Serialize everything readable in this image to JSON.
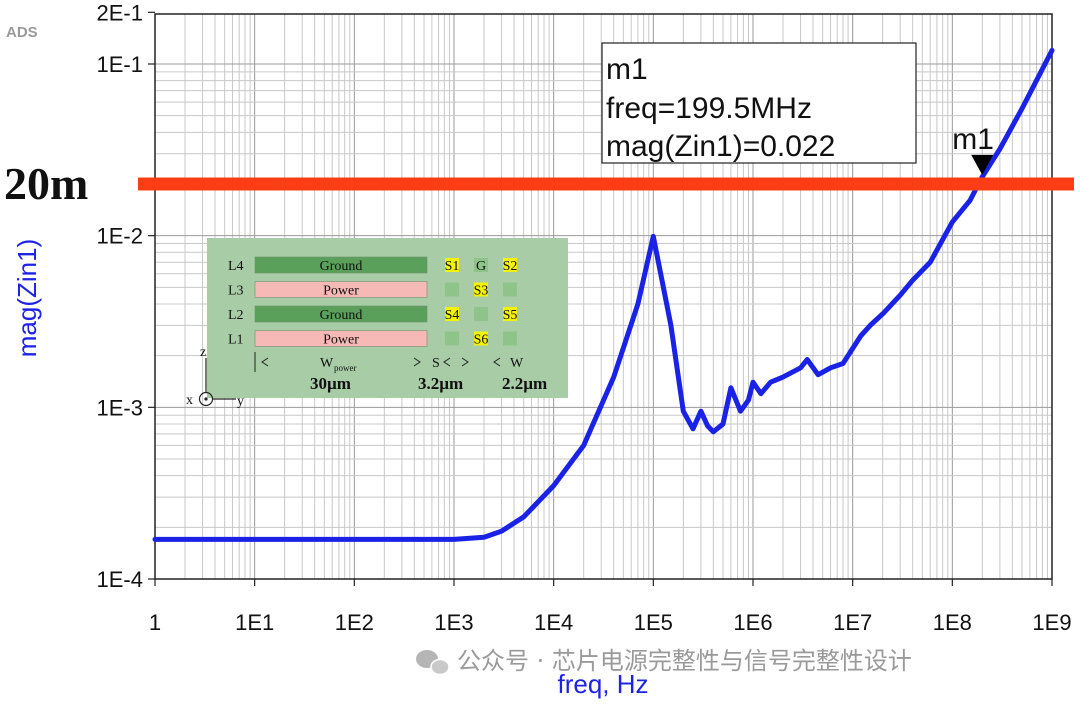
{
  "chart_data": {
    "type": "line",
    "ylabel": "mag(Zin1)",
    "xlabel": "freq, Hz",
    "x_scale": "log",
    "y_scale": "log",
    "xlim": [
      1,
      1000000000
    ],
    "ylim": [
      0.0001,
      0.2
    ],
    "grid": true,
    "x_ticks": [
      "1",
      "1E1",
      "1E2",
      "1E3",
      "1E4",
      "1E5",
      "1E6",
      "1E7",
      "1E8",
      "1E9"
    ],
    "y_ticks": [
      "1E-4",
      "1E-3",
      "1E-2",
      "1E-1",
      "2E-1"
    ],
    "series": [
      {
        "color": "#1a22e6",
        "points": [
          [
            1,
            0.00017
          ],
          [
            10,
            0.00017
          ],
          [
            100,
            0.00017
          ],
          [
            1000,
            0.00017
          ],
          [
            2000,
            0.000175
          ],
          [
            3000,
            0.00019
          ],
          [
            5000,
            0.00023
          ],
          [
            10000,
            0.00035
          ],
          [
            20000,
            0.0006
          ],
          [
            40000,
            0.0015
          ],
          [
            70000,
            0.004
          ],
          [
            100000,
            0.0099
          ],
          [
            150000,
            0.003
          ],
          [
            200000,
            0.00095
          ],
          [
            250000,
            0.00075
          ],
          [
            300000,
            0.00095
          ],
          [
            350000,
            0.00078
          ],
          [
            400000,
            0.00072
          ],
          [
            500000,
            0.0008
          ],
          [
            600000,
            0.0013
          ],
          [
            750000,
            0.00095
          ],
          [
            900000,
            0.0011
          ],
          [
            1000000,
            0.0014
          ],
          [
            1200000,
            0.0012
          ],
          [
            1500000,
            0.0014
          ],
          [
            2000000,
            0.0015
          ],
          [
            3000000,
            0.0017
          ],
          [
            3500000,
            0.0019
          ],
          [
            4500000,
            0.00155
          ],
          [
            6000000,
            0.0017
          ],
          [
            8000000,
            0.0018
          ],
          [
            12000000,
            0.0026
          ],
          [
            15000000,
            0.003
          ],
          [
            20000000,
            0.0035
          ],
          [
            30000000,
            0.0045
          ],
          [
            40000000,
            0.0055
          ],
          [
            60000000,
            0.007
          ],
          [
            100000000,
            0.012
          ],
          [
            150000000,
            0.016
          ],
          [
            199500000,
            0.022
          ],
          [
            300000000,
            0.032
          ],
          [
            500000000,
            0.055
          ],
          [
            1000000000,
            0.12
          ]
        ]
      }
    ],
    "reference_line": {
      "y": 0.02,
      "label": "20m",
      "color": "#ff3d14"
    },
    "marker": {
      "name": "m1",
      "x": 199500000,
      "y": 0.022,
      "box_lines": [
        "m1",
        "freq=199.5MHz",
        "mag(Zin1)=0.022"
      ]
    }
  },
  "brand": "ADS",
  "inset": {
    "background": "#a8cda6",
    "rows": [
      {
        "layer": "L4",
        "band": "Ground",
        "band_color": "#5aa05a",
        "cells": [
          {
            "label": "S1",
            "color": "#f2f20a"
          },
          {
            "label": "G",
            "color": "#8ec48a"
          },
          {
            "label": "S2",
            "color": "#f2f20a"
          }
        ]
      },
      {
        "layer": "L3",
        "band": "Power",
        "band_color": "#f7b9b6",
        "cells": [
          {
            "label": "",
            "color": "#8ec48a"
          },
          {
            "label": "S3",
            "color": "#f2f20a"
          },
          {
            "label": "",
            "color": "#8ec48a"
          }
        ]
      },
      {
        "layer": "L2",
        "band": "Ground",
        "band_color": "#5aa05a",
        "cells": [
          {
            "label": "S4",
            "color": "#f2f20a"
          },
          {
            "label": "",
            "color": "#8ec48a"
          },
          {
            "label": "S5",
            "color": "#f2f20a"
          }
        ]
      },
      {
        "layer": "L1",
        "band": "Power",
        "band_color": "#f7b9b6",
        "cells": [
          {
            "label": "",
            "color": "#8ec48a"
          },
          {
            "label": "S6",
            "color": "#f2f20a"
          },
          {
            "label": "",
            "color": "#8ec48a"
          }
        ]
      }
    ],
    "dim_w_power": "W",
    "dim_w_power_sub": "power",
    "dim_s": "S",
    "dim_w": "W",
    "val_power": "30µm",
    "val_s": "3.2µm",
    "val_w": "2.2µm",
    "axis_z": "z",
    "axis_x": "x",
    "axis_y": "y"
  },
  "watermark": "公众号 · 芯片电源完整性与信号完整性设计"
}
